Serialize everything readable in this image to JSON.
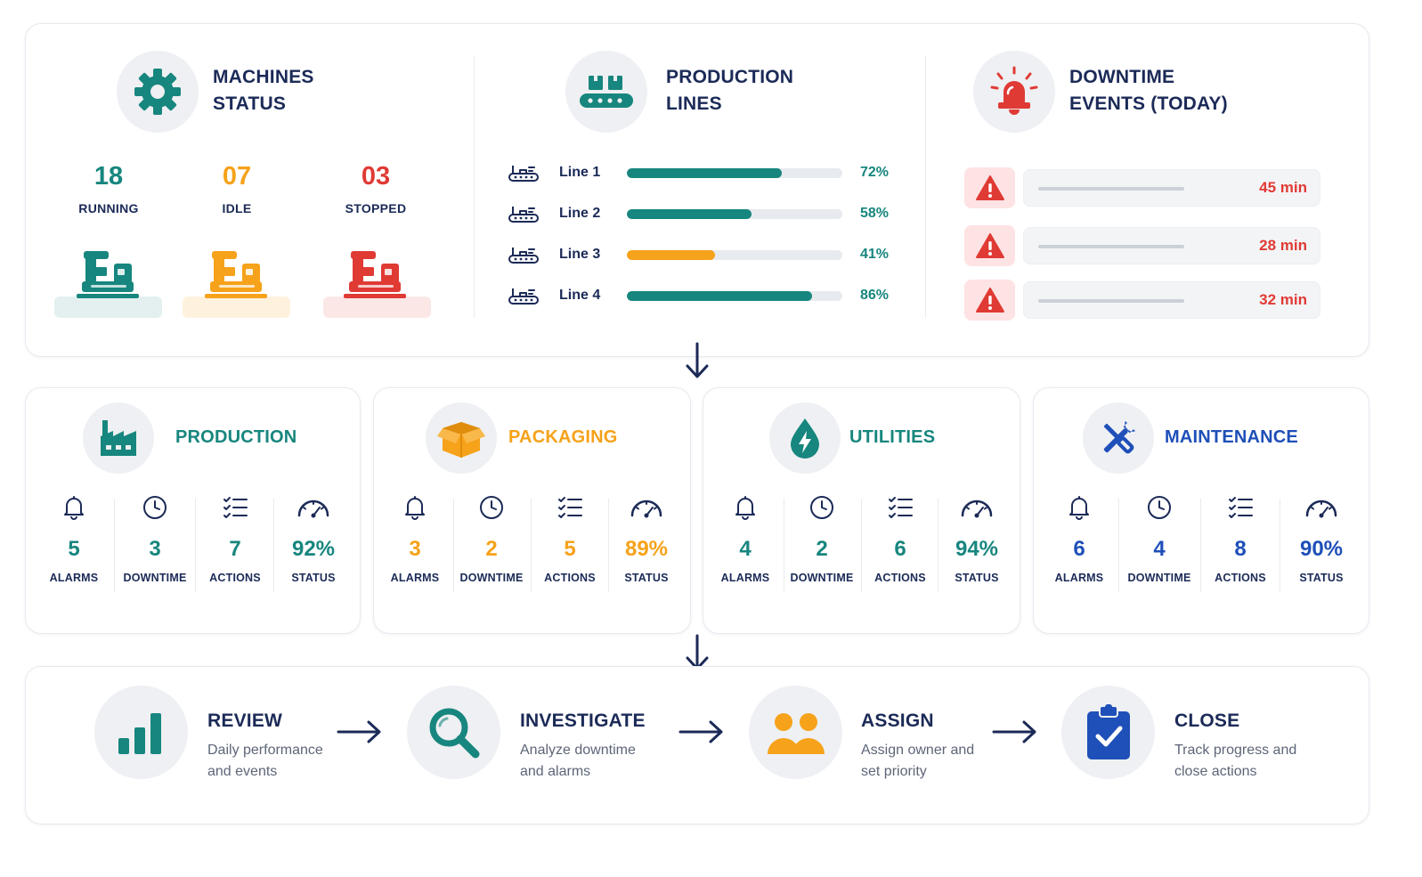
{
  "colors": {
    "teal": "#17867e",
    "orange": "#f6a21a",
    "red": "#e03a34",
    "navy": "#1b2a57",
    "blue": "#1f4fb8"
  },
  "machines": {
    "title_line1": "MACHINES",
    "title_line2": "STATUS",
    "icon": "gear-icon",
    "stats": [
      {
        "value": "18",
        "label": "RUNNING",
        "color": "#17867e"
      },
      {
        "value": "07",
        "label": "IDLE",
        "color": "#f6a21a"
      },
      {
        "value": "03",
        "label": "STOPPED",
        "color": "#e03a34"
      }
    ]
  },
  "production_lines": {
    "title_line1": "PRODUCTION",
    "title_line2": "LINES",
    "icon": "conveyor-icon",
    "lines": [
      {
        "label": "Line 1",
        "pct_text": "72%",
        "pct": 0.72,
        "color": "#17867e"
      },
      {
        "label": "Line 2",
        "pct_text": "58%",
        "pct": 0.58,
        "color": "#17867e"
      },
      {
        "label": "Line 3",
        "pct_text": "41%",
        "pct": 0.41,
        "color": "#f6a21a"
      },
      {
        "label": "Line 4",
        "pct_text": "86%",
        "pct": 0.86,
        "color": "#17867e"
      }
    ]
  },
  "downtime": {
    "title_line1": "DOWNTIME",
    "title_line2": "EVENTS (TODAY)",
    "icon": "alarm-bell-icon",
    "events": [
      {
        "value": "45 min"
      },
      {
        "value": "28 min"
      },
      {
        "value": "32 min"
      }
    ]
  },
  "areas": [
    {
      "name": "PRODUCTION",
      "icon": "factory-icon",
      "color": "#17867e",
      "metrics": [
        {
          "value": "5",
          "label": "ALARMS"
        },
        {
          "value": "3",
          "label": "DOWNTIME"
        },
        {
          "value": "7",
          "label": "ACTIONS"
        },
        {
          "value": "92%",
          "label": "STATUS"
        }
      ]
    },
    {
      "name": "PACKAGING",
      "icon": "box-icon",
      "color": "#f6a21a",
      "metrics": [
        {
          "value": "3",
          "label": "ALARMS"
        },
        {
          "value": "2",
          "label": "DOWNTIME"
        },
        {
          "value": "5",
          "label": "ACTIONS"
        },
        {
          "value": "89%",
          "label": "STATUS"
        }
      ]
    },
    {
      "name": "UTILITIES",
      "icon": "energy-drop-icon",
      "color": "#17867e",
      "metrics": [
        {
          "value": "4",
          "label": "ALARMS"
        },
        {
          "value": "2",
          "label": "DOWNTIME"
        },
        {
          "value": "6",
          "label": "ACTIONS"
        },
        {
          "value": "94%",
          "label": "STATUS"
        }
      ]
    },
    {
      "name": "MAINTENANCE",
      "icon": "wrench-screwdriver-icon",
      "color": "#1f4fb8",
      "metrics": [
        {
          "value": "6",
          "label": "ALARMS"
        },
        {
          "value": "4",
          "label": "DOWNTIME"
        },
        {
          "value": "8",
          "label": "ACTIONS"
        },
        {
          "value": "90%",
          "label": "STATUS"
        }
      ]
    }
  ],
  "workflow": [
    {
      "title": "REVIEW",
      "desc_line1": "Daily performance",
      "desc_line2": "and events",
      "icon": "bar-chart-icon"
    },
    {
      "title": "INVESTIGATE",
      "desc_line1": "Analyze downtime",
      "desc_line2": "and alarms",
      "icon": "magnifier-icon"
    },
    {
      "title": "ASSIGN",
      "desc_line1": "Assign owner and",
      "desc_line2": "set priority",
      "icon": "people-icon"
    },
    {
      "title": "CLOSE",
      "desc_line1": "Track progress and",
      "desc_line2": "close actions",
      "icon": "clipboard-check-icon"
    }
  ]
}
